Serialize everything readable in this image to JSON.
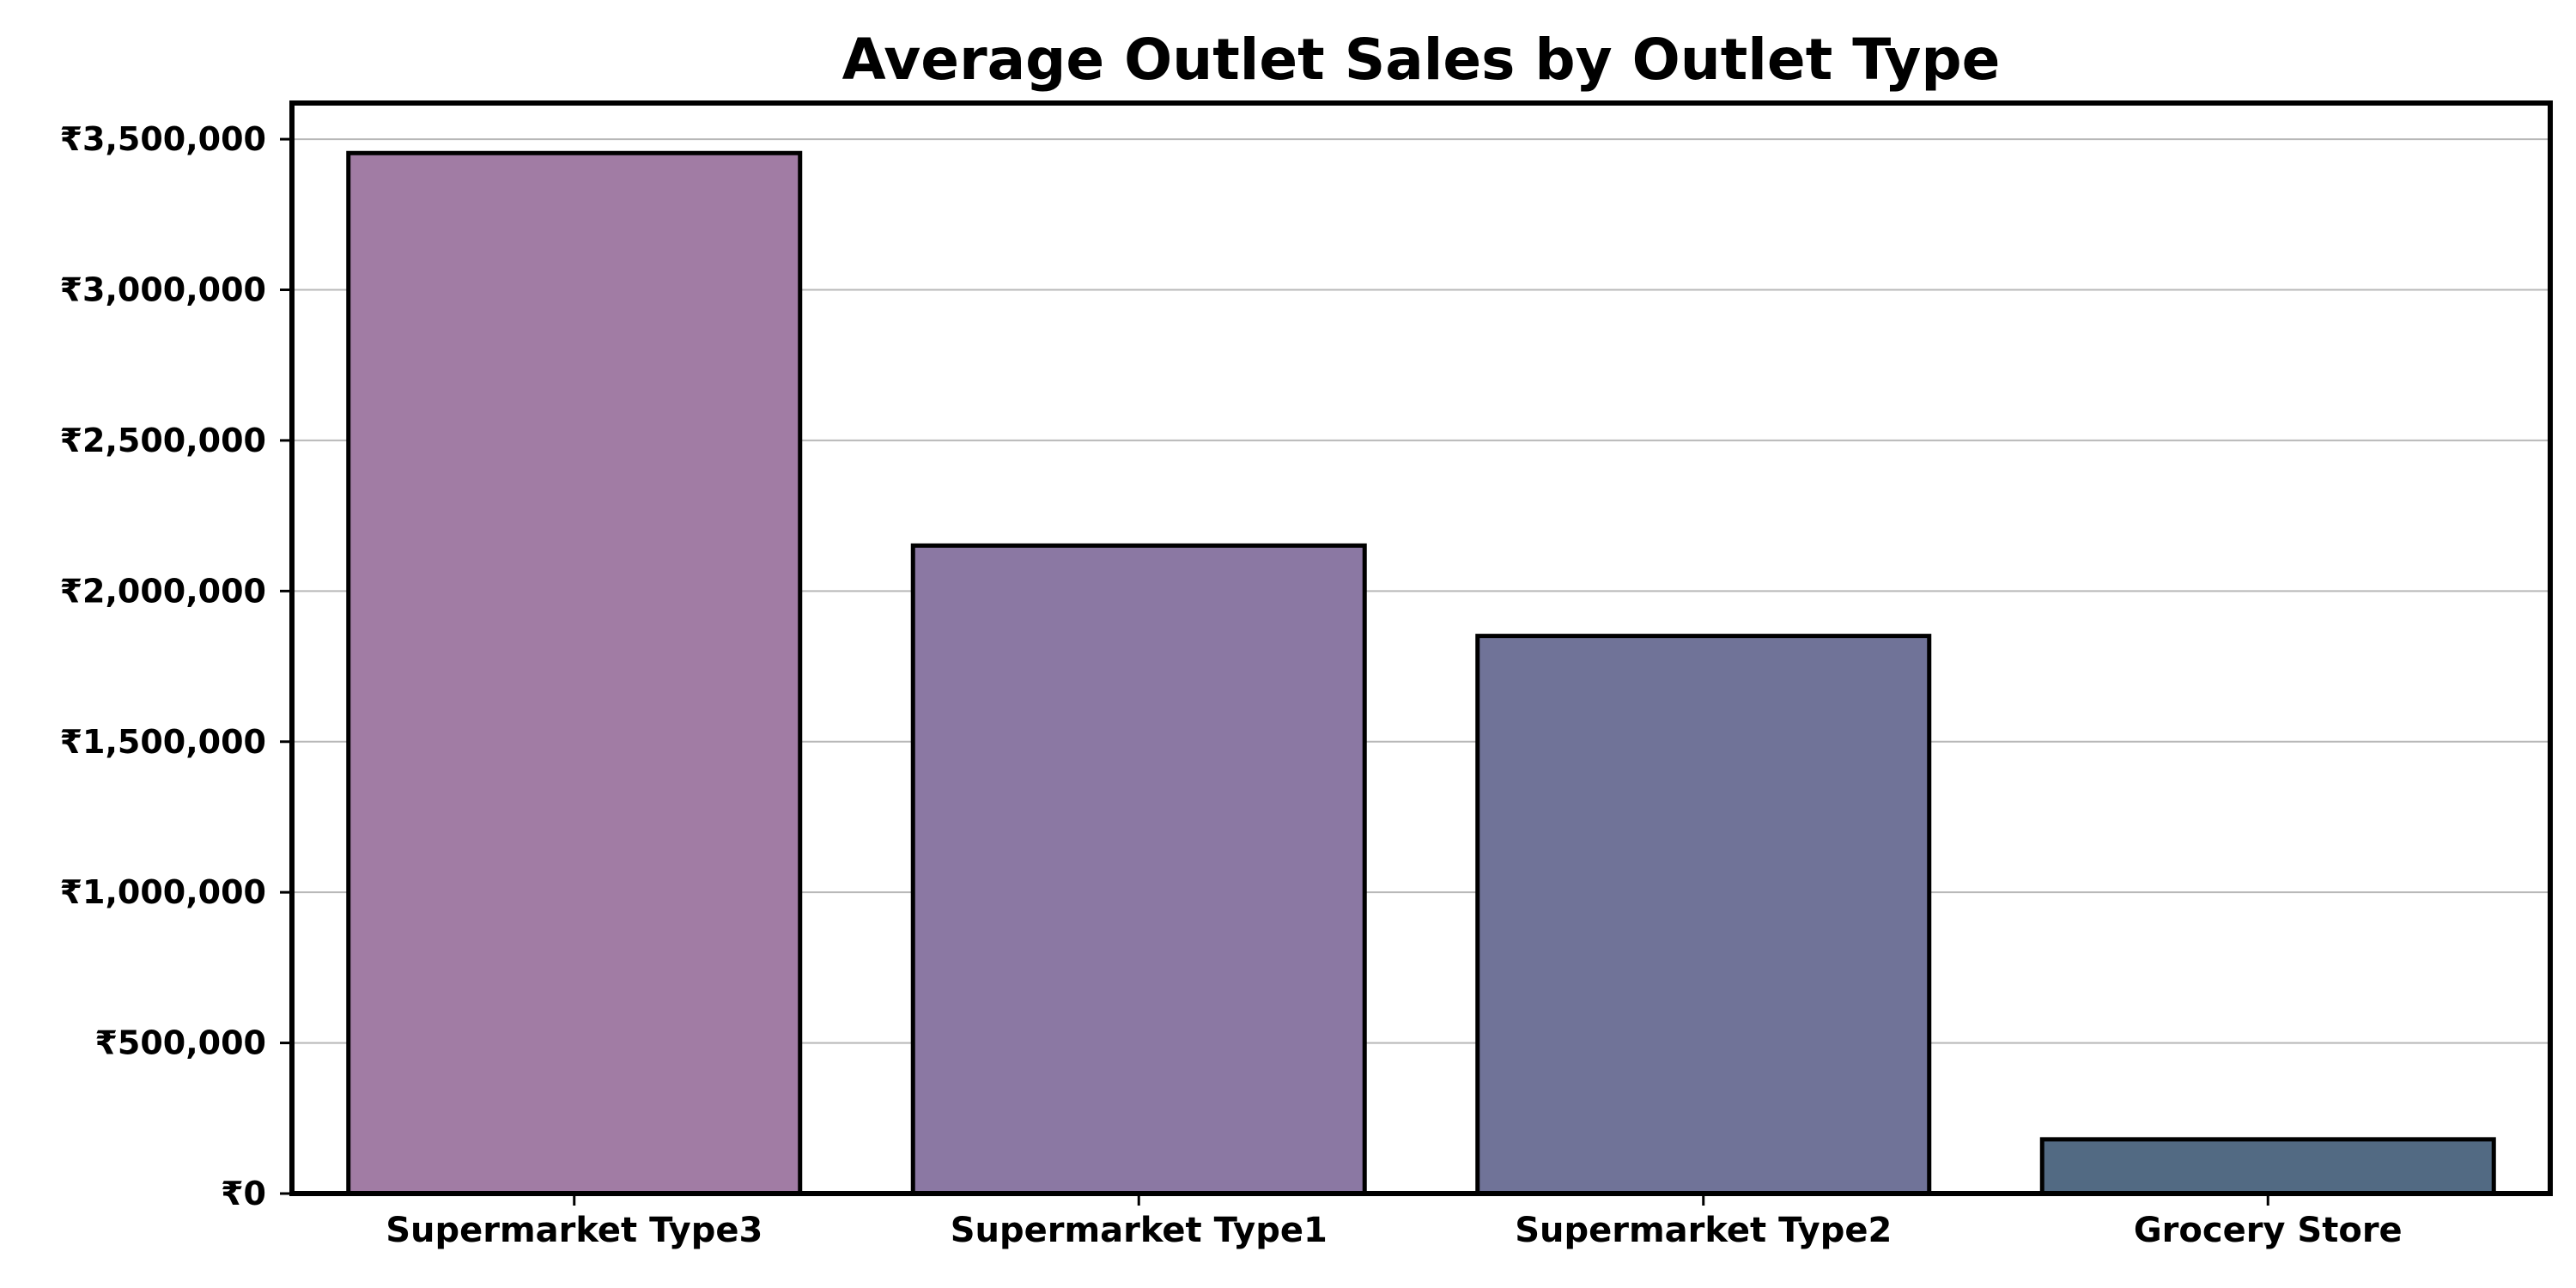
{
  "chart_data": {
    "type": "bar",
    "title": "Average Outlet Sales by Outlet Type",
    "xlabel": "",
    "ylabel": "",
    "categories": [
      "Supermarket Type3",
      "Supermarket Type1",
      "Supermarket Type2",
      "Grocery Store"
    ],
    "values": [
      3453926,
      2151000,
      1851000,
      180000
    ],
    "colors": [
      "#a17ca4",
      "#8b78a3",
      "#707398",
      "#526a83"
    ],
    "ylim": [
      0,
      3620000
    ],
    "yticks": [
      0,
      500000,
      1000000,
      1500000,
      2000000,
      2500000,
      3000000,
      3500000
    ],
    "ytick_labels": [
      "₹0",
      "₹500,000",
      "₹1,000,000",
      "₹1,500,000",
      "₹2,000,000",
      "₹2,500,000",
      "₹3,000,000",
      "₹3,500,000"
    ],
    "grid": "y",
    "legend": "none"
  }
}
